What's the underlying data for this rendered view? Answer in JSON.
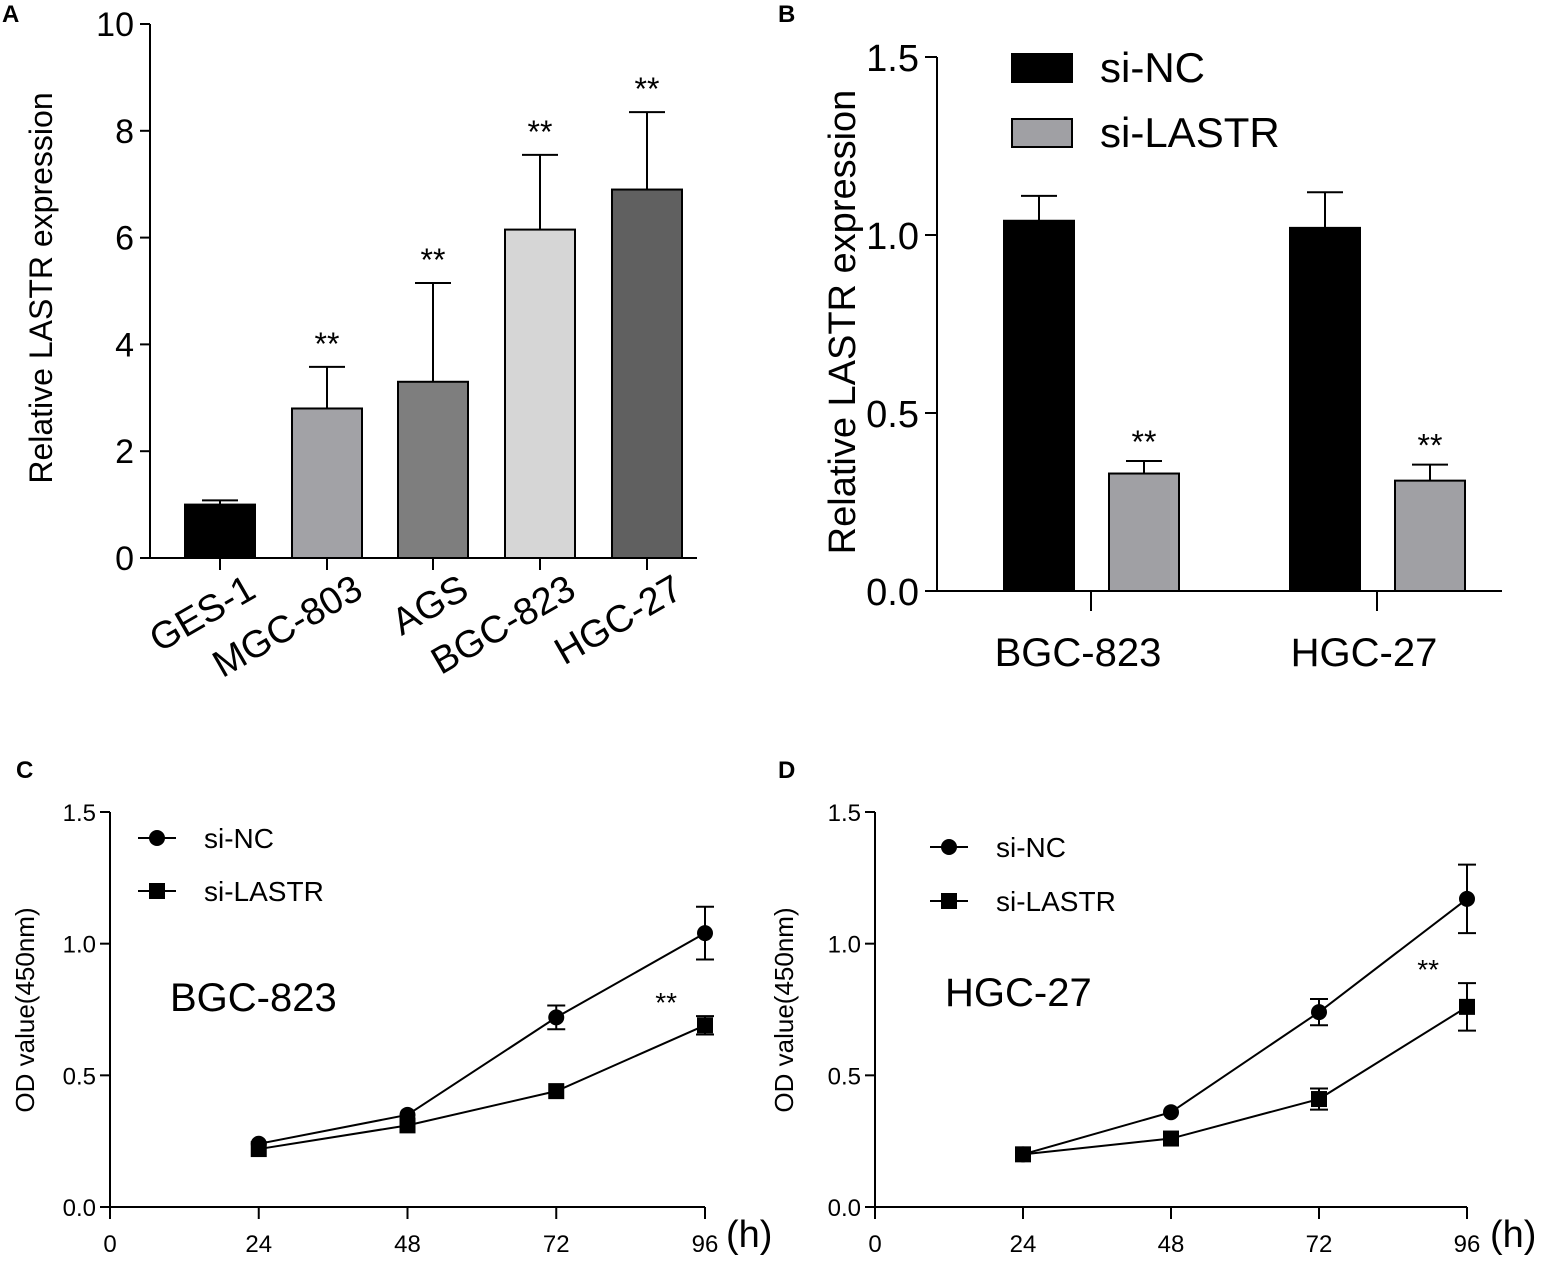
{
  "chart_data": [
    {
      "panel": "A",
      "type": "bar",
      "ylabel": "Relative LASTR expression",
      "ylim": [
        0,
        10
      ],
      "yticks": [
        0,
        2,
        4,
        6,
        8,
        10
      ],
      "categories": [
        "GES-1",
        "MGC-803",
        "AGS",
        "BGC-823",
        "HGC-27"
      ],
      "values": [
        1.0,
        2.8,
        3.3,
        6.15,
        6.9
      ],
      "errors": [
        0.08,
        0.78,
        1.85,
        1.4,
        1.45
      ],
      "colors": [
        "#000000",
        "#a2a2a6",
        "#7e7e7e",
        "#d6d6d6",
        "#606060"
      ],
      "significance": [
        "",
        "**",
        "**",
        "**",
        "**"
      ]
    },
    {
      "panel": "B",
      "type": "bar",
      "ylabel": "Relative LASTR expression",
      "ylim": [
        0,
        1.5
      ],
      "yticks": [
        "0.0",
        "0.5",
        "1.0",
        "1.5"
      ],
      "categories": [
        "BGC-823",
        "HGC-27"
      ],
      "series": [
        {
          "name": "si-NC",
          "color": "#000000",
          "values": [
            1.04,
            1.02
          ],
          "errors": [
            0.07,
            0.1
          ],
          "significance": [
            "",
            ""
          ]
        },
        {
          "name": "si-LASTR",
          "color": "#a0a0a4",
          "values": [
            0.33,
            0.31
          ],
          "errors": [
            0.035,
            0.045
          ],
          "significance": [
            "**",
            "**"
          ]
        }
      ]
    },
    {
      "panel": "C",
      "type": "line",
      "title": "BGC-823",
      "ylabel": "OD value(450nm)",
      "xunit": "(h)",
      "xlim": [
        0,
        96
      ],
      "ylim": [
        0,
        1.5
      ],
      "xticks": [
        0,
        24,
        48,
        72,
        96
      ],
      "yticks": [
        "0.0",
        "0.5",
        "1.0",
        "1.5"
      ],
      "x": [
        24,
        48,
        72,
        96
      ],
      "series": [
        {
          "name": "si-NC",
          "marker": "circle",
          "values": [
            0.24,
            0.35,
            0.72,
            1.04
          ],
          "errors": [
            0.01,
            0.01,
            0.045,
            0.1
          ]
        },
        {
          "name": "si-LASTR",
          "marker": "square",
          "values": [
            0.22,
            0.31,
            0.44,
            0.69
          ],
          "errors": [
            0.01,
            0.01,
            0.015,
            0.035
          ]
        }
      ],
      "annotation": "**"
    },
    {
      "panel": "D",
      "type": "line",
      "title": "HGC-27",
      "ylabel": "OD value(450nm)",
      "xunit": "(h)",
      "xlim": [
        0,
        96
      ],
      "ylim": [
        0,
        1.5
      ],
      "xticks": [
        0,
        24,
        48,
        72,
        96
      ],
      "yticks": [
        "0.0",
        "0.5",
        "1.0",
        "1.5"
      ],
      "x": [
        24,
        48,
        72,
        96
      ],
      "series": [
        {
          "name": "si-NC",
          "marker": "circle",
          "values": [
            0.2,
            0.36,
            0.74,
            1.17
          ],
          "errors": [
            0.01,
            0.01,
            0.05,
            0.13
          ]
        },
        {
          "name": "si-LASTR",
          "marker": "square",
          "values": [
            0.2,
            0.26,
            0.41,
            0.76
          ],
          "errors": [
            0.01,
            0.01,
            0.04,
            0.09
          ]
        }
      ],
      "annotation": "**"
    }
  ]
}
